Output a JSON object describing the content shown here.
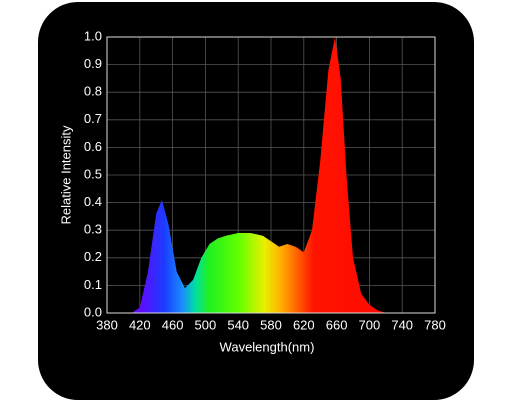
{
  "chart_data": {
    "type": "area",
    "x_label": "Wavelength(nm)",
    "y_label": "Relative Intensity",
    "x": [
      410,
      420,
      430,
      440,
      447,
      455,
      465,
      475,
      485,
      495,
      505,
      515,
      525,
      540,
      555,
      570,
      580,
      590,
      600,
      610,
      620,
      630,
      640,
      650,
      658,
      665,
      672,
      680,
      690,
      700,
      710,
      720
    ],
    "values": [
      0,
      0.02,
      0.15,
      0.36,
      0.41,
      0.32,
      0.15,
      0.09,
      0.12,
      0.2,
      0.25,
      0.27,
      0.28,
      0.29,
      0.29,
      0.28,
      0.26,
      0.24,
      0.25,
      0.24,
      0.22,
      0.3,
      0.55,
      0.88,
      1.0,
      0.85,
      0.5,
      0.2,
      0.07,
      0.03,
      0.01,
      0
    ],
    "xlim": [
      380,
      780
    ],
    "xticks": [
      380,
      420,
      460,
      500,
      540,
      580,
      620,
      660,
      700,
      740,
      780
    ],
    "ylim": [
      0,
      1
    ],
    "yticks": [
      {
        "value": 0,
        "label": "0.0"
      },
      0.1,
      0.2,
      0.3,
      0.4,
      0.5,
      0.6,
      0.7,
      0.8,
      0.9,
      {
        "value": 1,
        "label": "1.0"
      }
    ],
    "grid": true
  }
}
